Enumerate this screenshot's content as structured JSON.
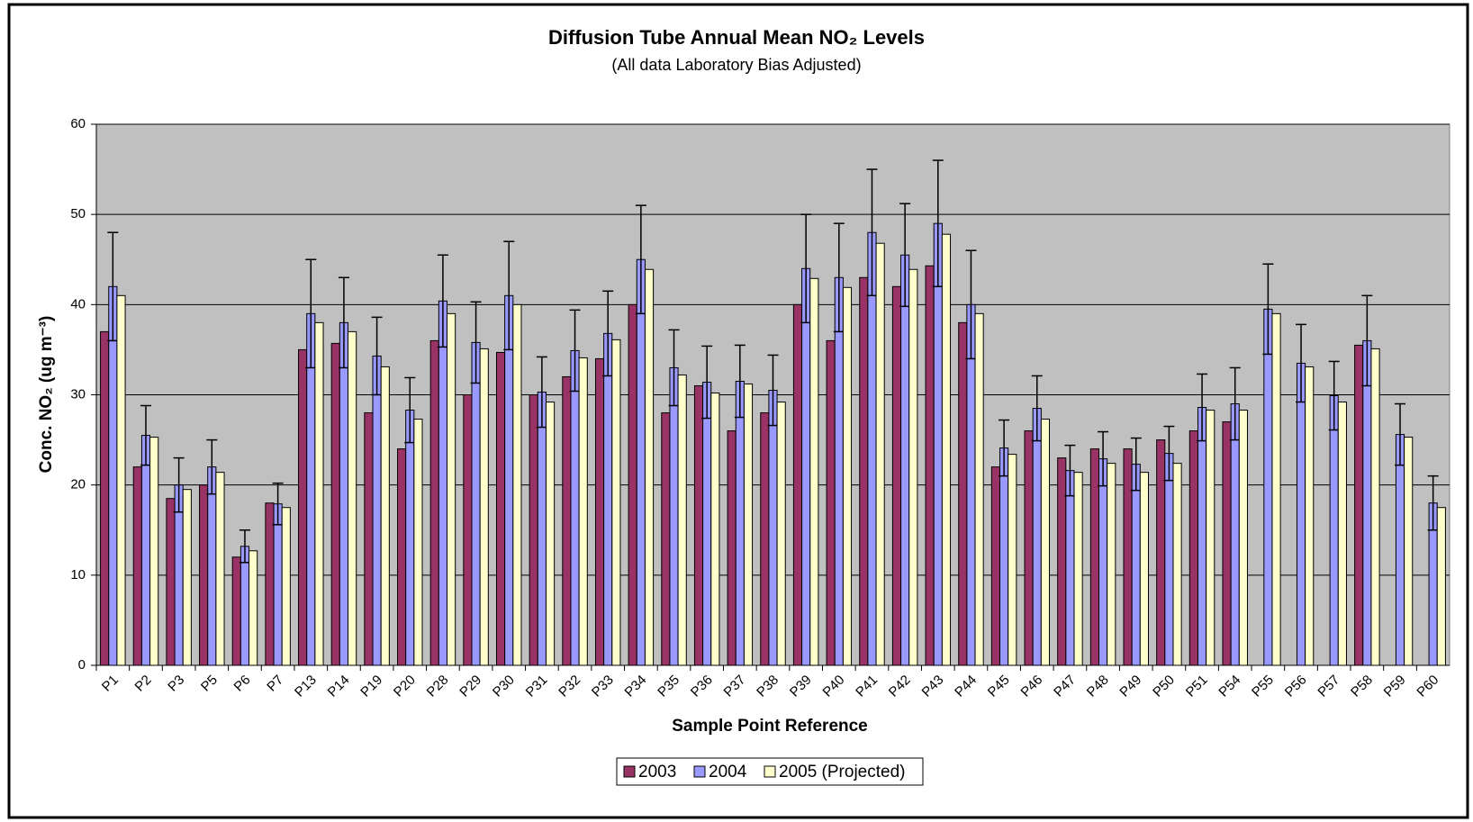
{
  "chart_data": {
    "type": "bar",
    "title": "Diffusion Tube Annual Mean NO₂ Levels",
    "subtitle": "(All data Laboratory Bias Adjusted)",
    "x_label": "Sample Point Reference",
    "y_label": "Conc. NO₂ (ug m⁻³)",
    "categories": [
      "P1",
      "P2",
      "P3",
      "P5",
      "P6",
      "P7",
      "P13",
      "P14",
      "P19",
      "P20",
      "P28",
      "P29",
      "P30",
      "P31",
      "P32",
      "P33",
      "P34",
      "P35",
      "P36",
      "P37",
      "P38",
      "P39",
      "P40",
      "P41",
      "P42",
      "P43",
      "P44",
      "P45",
      "P46",
      "P47",
      "P48",
      "P49",
      "P50",
      "P51",
      "P54",
      "P55",
      "P56",
      "P57",
      "P58",
      "P59",
      "P60"
    ],
    "series": [
      {
        "name": "2003",
        "color": "#993366",
        "values": [
          37,
          22,
          18.5,
          20,
          12,
          18,
          35,
          35.7,
          28,
          24,
          36,
          30,
          34.7,
          30,
          32,
          34,
          40,
          28,
          31,
          26,
          28,
          40,
          36,
          43,
          42,
          44.3,
          38,
          22,
          26,
          23,
          24,
          24,
          25,
          26,
          27,
          null,
          null,
          null,
          35.5,
          null,
          null
        ]
      },
      {
        "name": "2004",
        "color": "#9999ff",
        "values": [
          42,
          25.5,
          20,
          22,
          13.2,
          17.9,
          39,
          38,
          34.3,
          28.3,
          40.4,
          35.8,
          41,
          30.3,
          34.9,
          36.8,
          45,
          33,
          31.4,
          31.5,
          30.5,
          44,
          43,
          48,
          45.5,
          49,
          40,
          24.1,
          28.5,
          21.6,
          22.9,
          22.3,
          23.5,
          28.6,
          29,
          39.5,
          33.5,
          29.9,
          36,
          25.6,
          18
        ],
        "errors": [
          6,
          3.3,
          3,
          3,
          1.8,
          2.3,
          6,
          5,
          4.3,
          3.6,
          5.1,
          4.5,
          6,
          3.9,
          4.5,
          4.7,
          6,
          4.2,
          4,
          4,
          3.9,
          6,
          6,
          7,
          5.7,
          7,
          6,
          3.1,
          3.6,
          2.8,
          3,
          2.9,
          3,
          3.7,
          4,
          5,
          4.3,
          3.8,
          5,
          3.4,
          3
        ]
      },
      {
        "name": "2005 (Projected)",
        "color": "#ffffcc",
        "values": [
          41,
          25.3,
          19.5,
          21.4,
          12.7,
          17.5,
          38,
          37,
          33.1,
          27.3,
          39,
          35.1,
          40,
          29.2,
          34.1,
          36.1,
          43.9,
          32.2,
          30.2,
          31.2,
          29.2,
          42.9,
          41.9,
          46.8,
          43.9,
          47.8,
          39,
          23.4,
          27.3,
          21.4,
          22.4,
          21.4,
          22.4,
          28.3,
          28.3,
          39,
          33.1,
          29.2,
          35.1,
          25.3,
          17.5
        ]
      }
    ],
    "ylim": [
      0,
      60
    ],
    "yticks": [
      0,
      10,
      20,
      30,
      40,
      50,
      60
    ],
    "grid": true,
    "legend": "bottom",
    "plot_background": "#c0c0c0"
  }
}
